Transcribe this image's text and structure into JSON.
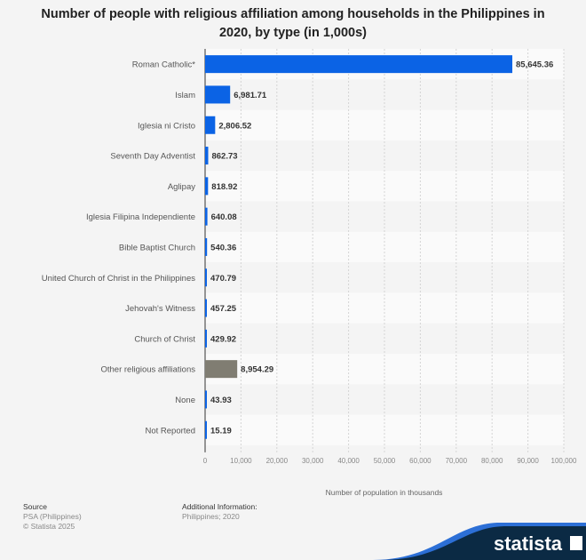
{
  "chart_data": {
    "type": "bar",
    "orientation": "horizontal",
    "title": "Number of people with religious affiliation among households in the Philippines in 2020, by type (in 1,000s)",
    "xlabel": "Number of population in thousands",
    "ylabel": "",
    "xlim": [
      0,
      100000
    ],
    "xticks": [
      "0",
      "10,000",
      "20,000",
      "30,000",
      "40,000",
      "50,000",
      "60,000",
      "70,000",
      "80,000",
      "90,000",
      "100,000"
    ],
    "grid": true,
    "categories": [
      "Roman Catholic*",
      "Islam",
      "Iglesia ni Cristo",
      "Seventh Day Adventist",
      "Aglipay",
      "Iglesia Filipina Independiente",
      "Bible Baptist Church",
      "United Church of Christ in the Philippines",
      "Jehovah's Witness",
      "Church of Christ",
      "Other religious affiliations",
      "None",
      "Not Reported"
    ],
    "values": [
      85645.36,
      6981.71,
      2806.52,
      862.73,
      818.92,
      640.08,
      540.36,
      470.79,
      457.25,
      429.92,
      8954.29,
      43.93,
      15.19
    ],
    "value_labels": [
      "85,645.36",
      "6,981.71",
      "2,806.52",
      "862.73",
      "818.92",
      "640.08",
      "540.36",
      "470.79",
      "457.25",
      "429.92",
      "8,954.29",
      "43.93",
      "15.19"
    ],
    "colors": {
      "default": "#0b63e5",
      "other": "#807d72"
    }
  },
  "footer": {
    "source_heading": "Source",
    "source": "PSA (Philippines)",
    "copyright": "© Statista 2025",
    "additional_heading": "Additional Information:",
    "additional": "Philippines; 2020"
  },
  "brand": {
    "logo_text": "statista",
    "colors": {
      "dark": "#0b2a44",
      "blue": "#2c6fd6"
    }
  }
}
